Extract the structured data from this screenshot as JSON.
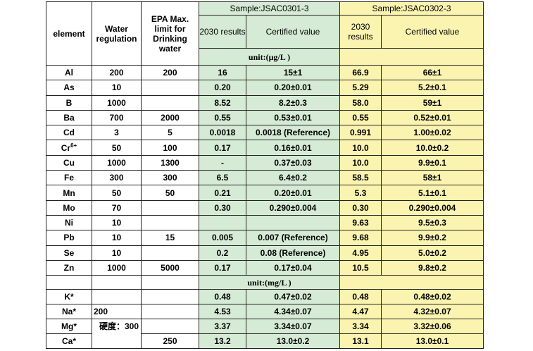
{
  "header": {
    "element": "element",
    "water_regulation": "Water regulation",
    "epa": "EPA Max. limit for Drinking water",
    "sample1": "Sample:JSAC0301-3",
    "sample2": "Sample:JSAC0302-3",
    "results_2030": "2030 results",
    "certified_value": "Certified value"
  },
  "unit_ug": "unit:(μg/L )",
  "unit_mg": "unit:(mg/L )",
  "rows_ug": [
    {
      "el": "Al",
      "sup": "",
      "reg": "200",
      "epa": "200",
      "s1_res": "16",
      "s1_cert": "15±1",
      "s2_res": "66.9",
      "s2_cert": "66±1"
    },
    {
      "el": "As",
      "sup": "",
      "reg": "10",
      "epa": "",
      "s1_res": "0.20",
      "s1_cert": "0.20±0.01",
      "s2_res": "5.29",
      "s2_cert": "5.2±0.1"
    },
    {
      "el": "B",
      "sup": "",
      "reg": "1000",
      "epa": "",
      "s1_res": "8.52",
      "s1_cert": "8.2±0.3",
      "s2_res": "58.0",
      "s2_cert": "59±1"
    },
    {
      "el": "Ba",
      "sup": "",
      "reg": "700",
      "epa": "2000",
      "s1_res": "0.55",
      "s1_cert": "0.53±0.01",
      "s2_res": "0.55",
      "s2_cert": "0.52±0.01"
    },
    {
      "el": "Cd",
      "sup": "",
      "reg": "3",
      "epa": "5",
      "s1_res": "0.0018",
      "s1_cert": "0.0018 (Reference)",
      "s2_res": "0.991",
      "s2_cert": "1.00±0.02"
    },
    {
      "el": "Cr",
      "sup": "6+",
      "reg": "50",
      "epa": "100",
      "s1_res": "0.17",
      "s1_cert": "0.16±0.01",
      "s2_res": "10.0",
      "s2_cert": "10.0±0.2"
    },
    {
      "el": "Cu",
      "sup": "",
      "reg": "1000",
      "epa": "1300",
      "s1_res": "-",
      "s1_cert": "0.37±0.03",
      "s2_res": "10.0",
      "s2_cert": "9.9±0.1"
    },
    {
      "el": "Fe",
      "sup": "",
      "reg": "300",
      "epa": "300",
      "s1_res": "6.5",
      "s1_cert": "6.4±0.2",
      "s2_res": "58.5",
      "s2_cert": "58±1"
    },
    {
      "el": "Mn",
      "sup": "",
      "reg": "50",
      "epa": "50",
      "s1_res": "0.21",
      "s1_cert": "0.20±0.01",
      "s2_res": "5.3",
      "s2_cert": "5.1±0.1"
    },
    {
      "el": "Mo",
      "sup": "",
      "reg": "70",
      "epa": "",
      "s1_res": "0.30",
      "s1_cert": "0.290±0.004",
      "s2_res": "0.30",
      "s2_cert": "0.290±0.004"
    },
    {
      "el": "Ni",
      "sup": "",
      "reg": "10",
      "epa": "",
      "s1_res": "",
      "s1_cert": "",
      "s2_res": "9.63",
      "s2_cert": "9.5±0.3"
    },
    {
      "el": "Pb",
      "sup": "",
      "reg": "10",
      "epa": "15",
      "s1_res": "0.005",
      "s1_cert": "0.007 (Reference)",
      "s2_res": "9.68",
      "s2_cert": "9.9±0.2"
    },
    {
      "el": "Se",
      "sup": "",
      "reg": "10",
      "epa": "",
      "s1_res": "0.2",
      "s1_cert": "0.08 (Reference)",
      "s2_res": "4.95",
      "s2_cert": "5.0±0.2"
    },
    {
      "el": "Zn",
      "sup": "",
      "reg": "1000",
      "epa": "5000",
      "s1_res": "0.17",
      "s1_cert": "0.17±0.04",
      "s2_res": "10.5",
      "s2_cert": "9.8±0.2"
    }
  ],
  "rows_mg": [
    {
      "el": "K*",
      "s1_res": "0.48",
      "s1_cert": "0.47±0.02",
      "s2_res": "0.48",
      "s2_cert": "0.48±0.02"
    },
    {
      "el": "Na*",
      "s1_res": "4.53",
      "s1_cert": "4.34±0.07",
      "s2_res": "4.47",
      "s2_cert": "4.32±0.07"
    },
    {
      "el": "Mg*",
      "s1_res": "3.37",
      "s1_cert": "3.34±0.07",
      "s2_res": "3.34",
      "s2_cert": "3.32±0.06"
    },
    {
      "el": "Ca*",
      "s1_res": "13.2",
      "s1_cert": "13.0±0.2",
      "s2_res": "13.1",
      "s2_cert": "13.0±0.1"
    }
  ],
  "na_reg": "200",
  "hardness": "硬度：300",
  "ca_epa": "250"
}
